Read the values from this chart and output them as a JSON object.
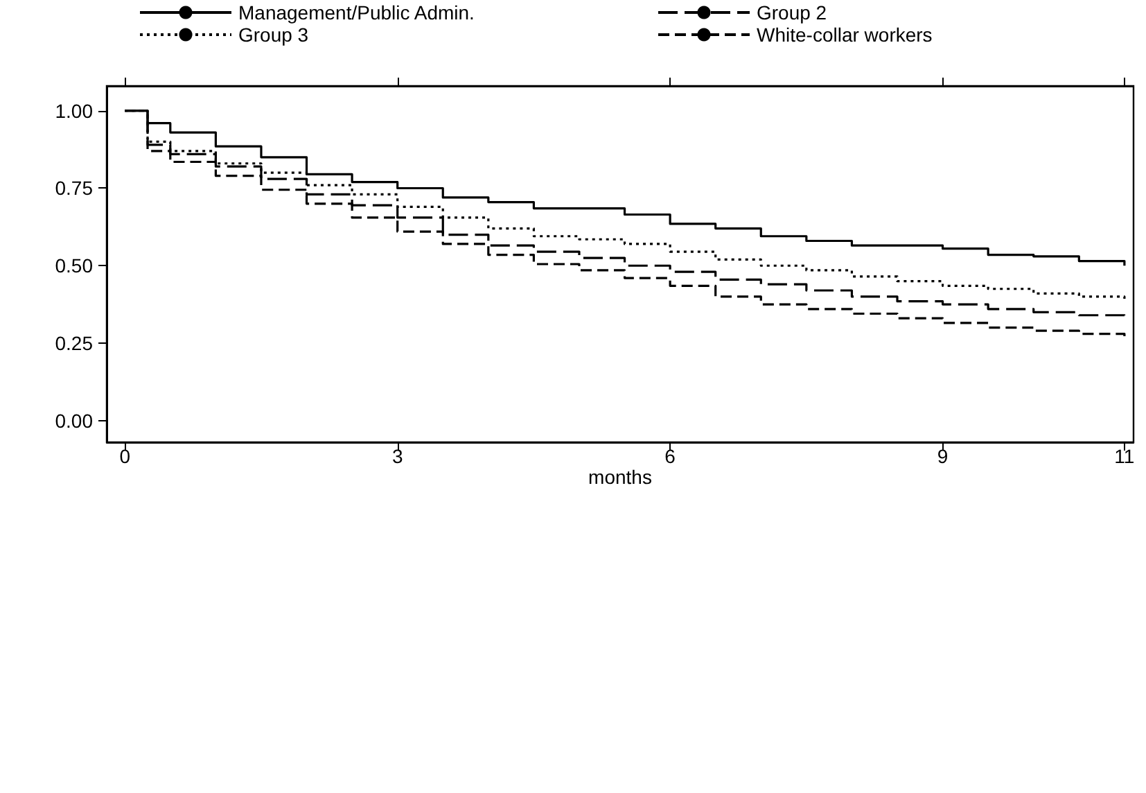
{
  "chart_data": {
    "type": "step",
    "xlabel": "months",
    "legend": "top",
    "marker": "none",
    "grid": false,
    "xlim": [
      -0.2,
      11.1
    ],
    "xticks": [
      0,
      3,
      6,
      9,
      11
    ],
    "ylim": [
      -0.07,
      1.08
    ],
    "yticks": [
      {
        "value": 0,
        "label": "0.00"
      },
      {
        "value": 0.25,
        "label": "0.25"
      },
      {
        "value": 0.5,
        "label": "0.50"
      },
      {
        "value": 0.75,
        "label": "0.75"
      },
      {
        "value": 1,
        "label": "1.00"
      }
    ],
    "x": [
      0,
      0.25,
      0.5,
      1,
      1.5,
      2,
      2.5,
      3,
      3.5,
      4,
      4.5,
      5,
      5.5,
      6,
      6.5,
      7,
      7.5,
      8,
      8.5,
      9,
      9.5,
      10,
      10.5,
      11
    ],
    "series": [
      {
        "name": "Management/Public Admin.",
        "color": "#000000",
        "line_style": "solid",
        "values": [
          1,
          0.96,
          0.93,
          0.885,
          0.85,
          0.795,
          0.77,
          0.75,
          0.72,
          0.705,
          0.685,
          0.685,
          0.665,
          0.635,
          0.62,
          0.595,
          0.58,
          0.565,
          0.565,
          0.555,
          0.535,
          0.53,
          0.515,
          0.5
        ]
      },
      {
        "name": "Group 2",
        "color": "#000000",
        "line_style": "dashed",
        "values": [
          1,
          0.89,
          0.86,
          0.82,
          0.78,
          0.73,
          0.695,
          0.655,
          0.6,
          0.565,
          0.545,
          0.525,
          0.5,
          0.48,
          0.455,
          0.44,
          0.42,
          0.4,
          0.385,
          0.375,
          0.36,
          0.35,
          0.34,
          0.335
        ]
      },
      {
        "name": "Group 3",
        "color": "#000000",
        "line_style": "dotted",
        "values": [
          1,
          0.9,
          0.87,
          0.83,
          0.8,
          0.76,
          0.73,
          0.69,
          0.655,
          0.62,
          0.595,
          0.585,
          0.57,
          0.545,
          0.52,
          0.5,
          0.485,
          0.465,
          0.45,
          0.435,
          0.425,
          0.41,
          0.4,
          0.385
        ]
      },
      {
        "name": "White-collar workers",
        "color": "#000000",
        "line_style": "dashed",
        "values": [
          1,
          0.87,
          0.835,
          0.79,
          0.745,
          0.7,
          0.655,
          0.61,
          0.57,
          0.535,
          0.505,
          0.485,
          0.46,
          0.435,
          0.4,
          0.375,
          0.36,
          0.345,
          0.33,
          0.315,
          0.3,
          0.29,
          0.28,
          0.27
        ]
      }
    ]
  }
}
